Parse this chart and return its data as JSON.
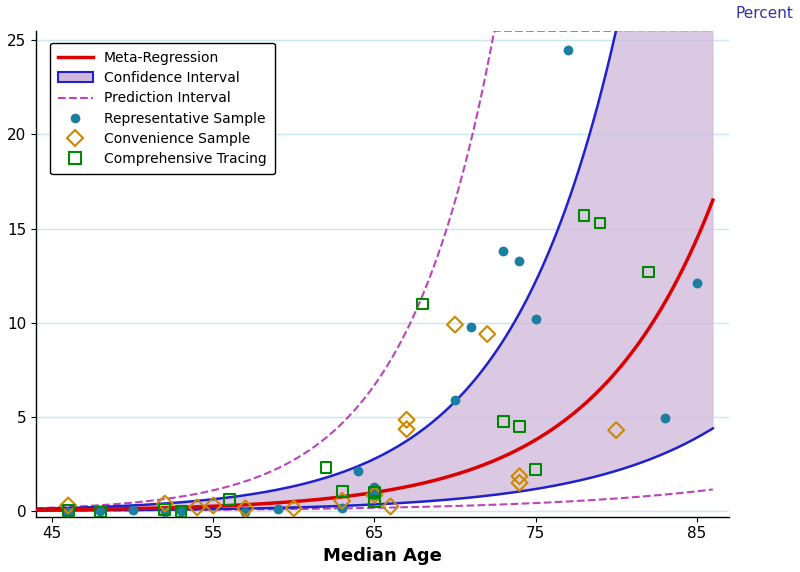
{
  "ylabel_right": "Percent",
  "xlabel": "Median Age",
  "xlim": [
    44,
    87
  ],
  "ylim": [
    -0.3,
    25.5
  ],
  "yticks": [
    0,
    5,
    10,
    15,
    20,
    25
  ],
  "xticks": [
    45,
    55,
    65,
    75,
    85
  ],
  "meta_regression_color": "#dd0000",
  "ci_fill_color": "#d0b8dc",
  "ci_edge_color": "#2020cc",
  "pred_interval_color": "#bb44bb",
  "rep_sample_color": "#1a7fa0",
  "conv_sample_color": "#cc8800",
  "comp_tracing_color": "#008800",
  "bg_color": "#ffffff",
  "grid_color": "#c8e8f0",
  "exp_k": 0.134,
  "exp_lnA": -8.72,
  "ci_upper_k": 0.148,
  "ci_upper_lnA": -8.6,
  "ci_lower_k": 0.12,
  "ci_lower_lnA": -8.84,
  "pred_upper_k": 0.18,
  "pred_upper_lnA": -9.8,
  "pred_lower_k": 0.09,
  "pred_lower_lnA": -7.6,
  "representative_sample": [
    [
      46,
      -0.05
    ],
    [
      48,
      0.0
    ],
    [
      50,
      0.05
    ],
    [
      52,
      -0.05
    ],
    [
      53,
      0.0
    ],
    [
      57,
      -0.05
    ],
    [
      59,
      0.1
    ],
    [
      63,
      0.15
    ],
    [
      64,
      2.15
    ],
    [
      65,
      1.3
    ],
    [
      65,
      0.85
    ],
    [
      70,
      5.9
    ],
    [
      71,
      9.8
    ],
    [
      73,
      13.8
    ],
    [
      74,
      13.3
    ],
    [
      75,
      10.2
    ],
    [
      77,
      24.5
    ],
    [
      83,
      4.95
    ],
    [
      85,
      12.1
    ]
  ],
  "convenience_sample": [
    [
      46,
      0.3
    ],
    [
      52,
      0.4
    ],
    [
      54,
      0.2
    ],
    [
      55,
      0.3
    ],
    [
      57,
      0.15
    ],
    [
      60,
      0.15
    ],
    [
      63,
      0.55
    ],
    [
      65,
      0.85
    ],
    [
      66,
      0.25
    ],
    [
      67,
      4.85
    ],
    [
      67,
      4.35
    ],
    [
      70,
      9.9
    ],
    [
      72,
      9.4
    ],
    [
      74,
      1.85
    ],
    [
      74,
      1.5
    ],
    [
      80,
      4.3
    ]
  ],
  "comprehensive_tracing": [
    [
      46,
      0.05
    ],
    [
      48,
      -0.05
    ],
    [
      52,
      0.1
    ],
    [
      53,
      0.0
    ],
    [
      56,
      0.6
    ],
    [
      62,
      2.3
    ],
    [
      63,
      1.05
    ],
    [
      65,
      0.5
    ],
    [
      65,
      1.0
    ],
    [
      68,
      11.0
    ],
    [
      73,
      4.75
    ],
    [
      74,
      4.5
    ],
    [
      75,
      2.2
    ],
    [
      78,
      15.7
    ],
    [
      79,
      15.3
    ],
    [
      82,
      12.7
    ]
  ]
}
